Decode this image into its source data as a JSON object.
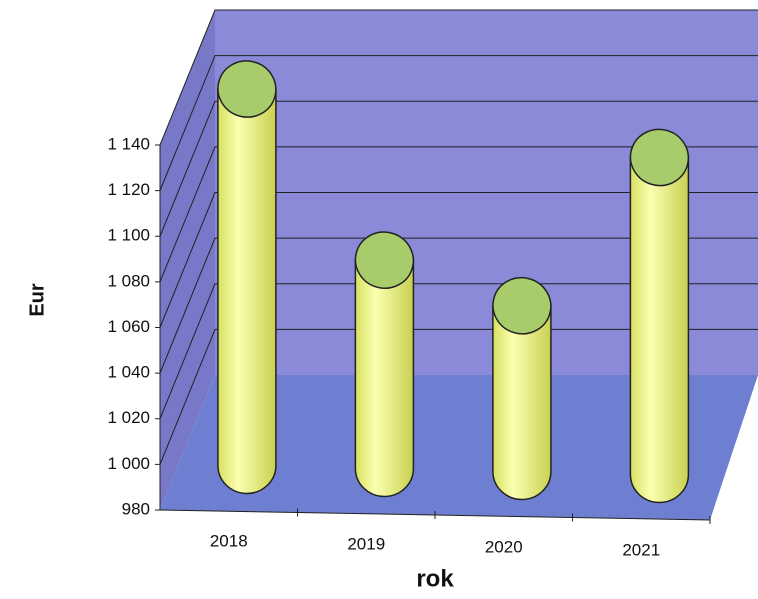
{
  "chart_data": {
    "type": "bar3d",
    "categories": [
      "2018",
      "2019",
      "2020",
      "2021"
    ],
    "values": [
      1145,
      1070,
      1050,
      1115
    ],
    "color": "#f4fc8c",
    "top_color": "#a8cc6c",
    "xlabel": "rok",
    "ylabel": "Eur",
    "ylim": [
      980,
      1140
    ],
    "yticks": [
      980,
      {
        "value": 1000,
        "label": "1 000"
      },
      {
        "value": 1020,
        "label": "1 020"
      },
      {
        "value": 1040,
        "label": "1 040"
      },
      {
        "value": 1060,
        "label": "1 060"
      },
      {
        "value": 1080,
        "label": "1 080"
      },
      {
        "value": 1100,
        "label": "1 100"
      },
      {
        "value": 1120,
        "label": "1 120"
      },
      {
        "value": 1140,
        "label": "1 140"
      }
    ],
    "grid": true
  }
}
